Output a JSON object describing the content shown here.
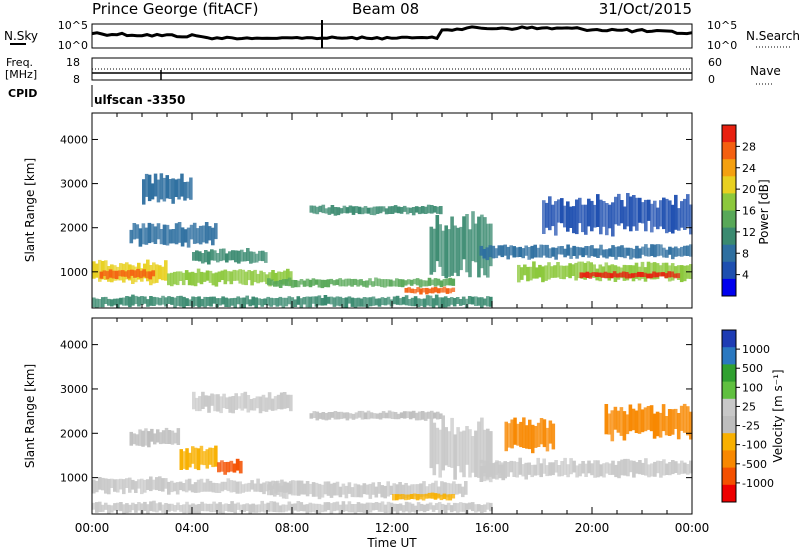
{
  "header": {
    "station": "Prince George (fitACF)",
    "beam": "Beam 08",
    "date": "31/Oct/2015"
  },
  "noise_panel": {
    "left_label": "N.Sky",
    "left_ticks": [
      "10^5",
      "10^0"
    ],
    "right_ticks": [
      "10^5",
      "10^0"
    ],
    "right_label": "N.Search"
  },
  "freq_panel": {
    "left_label_1": "Freq.",
    "left_label_2": "[MHz]",
    "left_ticks": [
      "18",
      "8"
    ],
    "right_ticks": [
      "60",
      "0"
    ],
    "right_label": "Nave",
    "cpid_label": "CPID",
    "scan_label": "ulfscan  -3350"
  },
  "time_axis": {
    "labels": [
      "00:00",
      "04:00",
      "08:00",
      "12:00",
      "16:00",
      "20:00",
      "00:00"
    ],
    "title": "Time UT"
  },
  "colors": {
    "power": [
      "#0000ee",
      "#1e4fb0",
      "#2e6fa0",
      "#3a8a70",
      "#58a858",
      "#8cc83c",
      "#e8d020",
      "#f4a010",
      "#f46010",
      "#e82010"
    ],
    "velocity": [
      "#ee0000",
      "#f45000",
      "#f88800",
      "#f8b000",
      "#bebebe",
      "#c8c8c8",
      "#60c040",
      "#30a030",
      "#2a78c0",
      "#1e3cb4"
    ]
  },
  "chart_data": [
    {
      "type": "heatmap",
      "name": "power",
      "ylabel": "Slant Range [km]",
      "y_ticks": [
        1000,
        2000,
        3000,
        4000
      ],
      "ylim": [
        180,
        4600
      ],
      "xlim": [
        0,
        24
      ],
      "colorbar_ticks": [
        "4",
        "8",
        "12",
        "16",
        "20",
        "24",
        "28"
      ],
      "colorbar_label": "Power [dB]",
      "colorbar_range": [
        0,
        32
      ],
      "bands": [
        {
          "t": [
            0,
            3
          ],
          "r": [
            750,
            1250
          ],
          "v": 20
        },
        {
          "t": [
            0.3,
            2.5
          ],
          "r": [
            850,
            1050
          ],
          "v": 28
        },
        {
          "t": [
            3,
            8
          ],
          "r": [
            700,
            1050
          ],
          "v": 17
        },
        {
          "t": [
            4,
            7
          ],
          "r": [
            1200,
            1500
          ],
          "v": 12
        },
        {
          "t": [
            1.5,
            5
          ],
          "r": [
            1600,
            2100
          ],
          "v": 9
        },
        {
          "t": [
            2,
            4
          ],
          "r": [
            2600,
            3200
          ],
          "v": 7
        },
        {
          "t": [
            7,
            14.5
          ],
          "r": [
            650,
            850
          ],
          "v": 13
        },
        {
          "t": [
            12.5,
            14.5
          ],
          "r": [
            500,
            650
          ],
          "v": 27
        },
        {
          "t": [
            8.7,
            14
          ],
          "r": [
            2300,
            2500
          ],
          "v": 11
        },
        {
          "t": [
            13.5,
            16
          ],
          "r": [
            900,
            2300
          ],
          "v": 12
        },
        {
          "t": [
            15.5,
            24
          ],
          "r": [
            1300,
            1600
          ],
          "v": 8
        },
        {
          "t": [
            17,
            24
          ],
          "r": [
            800,
            1200
          ],
          "v": 18
        },
        {
          "t": [
            19.5,
            23.5
          ],
          "r": [
            850,
            1000
          ],
          "v": 29
        },
        {
          "t": [
            18,
            24
          ],
          "r": [
            1900,
            2700
          ],
          "v": 5
        },
        {
          "t": [
            0,
            16
          ],
          "r": [
            200,
            450
          ],
          "v": 10
        }
      ]
    },
    {
      "type": "heatmap",
      "name": "velocity",
      "ylabel": "Slant Range [km]",
      "y_ticks": [
        1000,
        2000,
        3000,
        4000
      ],
      "ylim": [
        180,
        4600
      ],
      "xlim": [
        0,
        24
      ],
      "colorbar_ticks": [
        "-1000",
        "-500",
        "-100",
        "-25",
        "25",
        "100",
        "500",
        "1000"
      ],
      "colorbar_label": "Velocity [m s⁻¹]",
      "colorbar_range": [
        -1200,
        1200
      ],
      "bands": [
        {
          "t": [
            0,
            3
          ],
          "r": [
            650,
            1000
          ],
          "v": 90
        },
        {
          "t": [
            3,
            8
          ],
          "r": [
            650,
            950
          ],
          "v": 10
        },
        {
          "t": [
            7,
            15
          ],
          "r": [
            550,
            900
          ],
          "v": 5
        },
        {
          "t": [
            12,
            14.5
          ],
          "r": [
            500,
            650
          ],
          "v": -300
        },
        {
          "t": [
            3.5,
            5
          ],
          "r": [
            1200,
            1700
          ],
          "v": -400
        },
        {
          "t": [
            5,
            6
          ],
          "r": [
            1100,
            1400
          ],
          "v": -800
        },
        {
          "t": [
            1.5,
            3.5
          ],
          "r": [
            1700,
            2100
          ],
          "v": -200
        },
        {
          "t": [
            4,
            8
          ],
          "r": [
            2500,
            2900
          ],
          "v": 10
        },
        {
          "t": [
            8.7,
            14
          ],
          "r": [
            2300,
            2500
          ],
          "v": -10
        },
        {
          "t": [
            13.5,
            16
          ],
          "r": [
            1000,
            2300
          ],
          "v": 5
        },
        {
          "t": [
            15.5,
            24
          ],
          "r": [
            1000,
            1400
          ],
          "v": 10
        },
        {
          "t": [
            16.5,
            18.5
          ],
          "r": [
            1600,
            2300
          ],
          "v": -600
        },
        {
          "t": [
            20.5,
            24
          ],
          "r": [
            1900,
            2600
          ],
          "v": -700
        },
        {
          "t": [
            15.5,
            16.5
          ],
          "r": [
            900,
            1400
          ],
          "v": 120
        },
        {
          "t": [
            0,
            16
          ],
          "r": [
            200,
            450
          ],
          "v": 20
        }
      ]
    }
  ]
}
